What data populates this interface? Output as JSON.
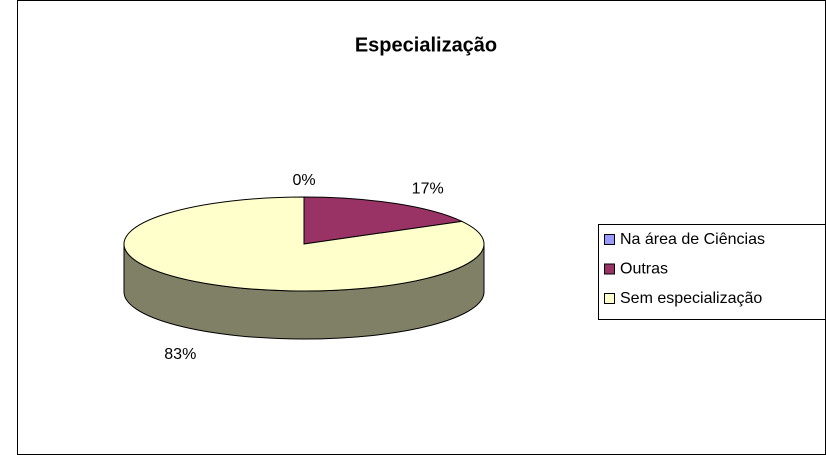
{
  "chart_data": {
    "type": "pie",
    "title": "Especialização",
    "categories": [
      "Na área de Ciências",
      "Outras",
      "Sem especialização"
    ],
    "values": [
      0,
      17,
      83
    ],
    "value_labels": [
      "0%",
      "17%",
      "83%"
    ],
    "colors": [
      "#9999ff",
      "#993366",
      "#ffffcc"
    ],
    "legend": "right"
  }
}
